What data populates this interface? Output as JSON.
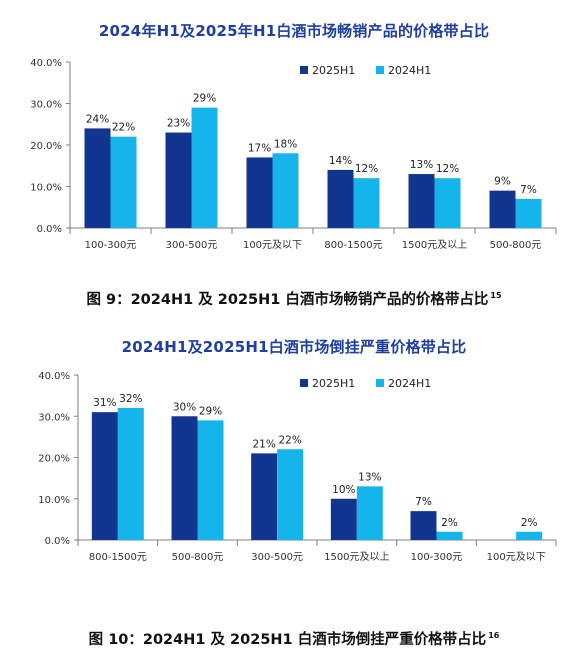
{
  "chart_data": [
    {
      "type": "bar",
      "title": "2024年H1及2025年H1白酒市场畅销产品的价格带占比",
      "categories": [
        "100-300元",
        "300-500元",
        "100元及以下",
        "800-1500元",
        "1500元及以上",
        "500-800元"
      ],
      "series": [
        {
          "name": "2025H1",
          "values": [
            24,
            23,
            17,
            14,
            13,
            9
          ],
          "labels": [
            "24%",
            "23%",
            "17%",
            "14%",
            "13%",
            "9%"
          ],
          "color": "#123590"
        },
        {
          "name": "2024H1",
          "values": [
            22,
            29,
            18,
            12,
            12,
            7
          ],
          "labels": [
            "22%",
            "29%",
            "18%",
            "12%",
            "12%",
            "7%"
          ],
          "color": "#15b4ea"
        }
      ],
      "yticks": [
        "0.0%",
        "10.0%",
        "20.0%",
        "30.0%",
        "40.0%"
      ],
      "ylim": [
        0,
        40
      ],
      "legend": "top-right",
      "grid": false,
      "caption": "图 9：2024H1 及 2025H1 白酒市场畅销产品的价格带占比",
      "caption_ref": "15"
    },
    {
      "type": "bar",
      "title": "2024H1及2025H1白酒市场倒挂严重价格带占比",
      "categories": [
        "800-1500元",
        "500-800元",
        "300-500元",
        "1500元及以上",
        "100-300元",
        "100元及以下"
      ],
      "series": [
        {
          "name": "2025H1",
          "values": [
            31,
            30,
            21,
            10,
            7,
            0
          ],
          "labels": [
            "31%",
            "30%",
            "21%",
            "10%",
            "7%",
            ""
          ],
          "color": "#123590"
        },
        {
          "name": "2024H1",
          "values": [
            32,
            29,
            22,
            13,
            2,
            2
          ],
          "labels": [
            "32%",
            "29%",
            "22%",
            "13%",
            "2%",
            "2%"
          ],
          "color": "#15b4ea"
        }
      ],
      "yticks": [
        "0.0%",
        "10.0%",
        "20.0%",
        "30.0%",
        "40.0%"
      ],
      "ylim": [
        0,
        40
      ],
      "legend": "top-right",
      "grid": false,
      "caption": "图 10：2024H1 及 2025H1 白酒市场倒挂严重价格带占比",
      "caption_ref": "16"
    }
  ]
}
